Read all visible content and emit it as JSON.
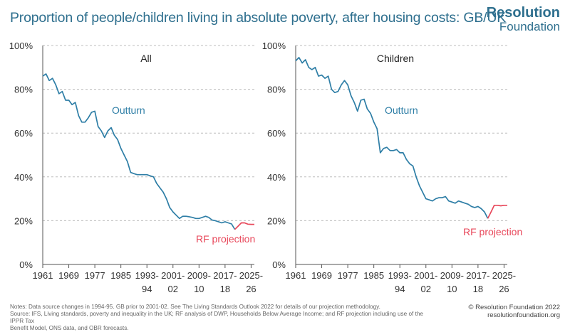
{
  "title": "Proportion of people/children living in absolute poverty, after housing costs: GB/UK",
  "logo": {
    "line1": "Resolution",
    "line2": "Foundation"
  },
  "notes": [
    "Notes: Data source changes in 1994-95. GB prior to 2001-02. See The Living Standards Outlook 2022 for details of our projection methodology.",
    "Source: IFS, Living standards, poverty and inequality in the UK; RF analysis of DWP, Households Below Average Income; and RF projection including use of the IPPR Tax",
    "Benefit Model, ONS data, and OBR forecasts."
  ],
  "copyright": {
    "line1": "© Resolution Foundation 2022",
    "line2": "resolutionfoundation.org"
  },
  "colors": {
    "outturn": "#2e7ea6",
    "projection": "#e8475a",
    "grid": "#bdbdbd",
    "title": "#2e6f8e"
  },
  "chart_data": [
    {
      "type": "line",
      "title": "All",
      "ylim": [
        0,
        100
      ],
      "yticks": [
        "0%",
        "20%",
        "40%",
        "60%",
        "80%",
        "100%"
      ],
      "xlim": [
        1961,
        2026
      ],
      "xticks": [
        {
          "x": 1961,
          "line1": "1961",
          "line2": ""
        },
        {
          "x": 1969,
          "line1": "1969",
          "line2": ""
        },
        {
          "x": 1977,
          "line1": "1977",
          "line2": ""
        },
        {
          "x": 1985,
          "line1": "1985",
          "line2": ""
        },
        {
          "x": 1993,
          "line1": "1993-",
          "line2": "94"
        },
        {
          "x": 2001,
          "line1": "2001-",
          "line2": "02"
        },
        {
          "x": 2009,
          "line1": "2009-",
          "line2": "10"
        },
        {
          "x": 2017,
          "line1": "2017-",
          "line2": "18"
        },
        {
          "x": 2025,
          "line1": "2025-",
          "line2": "26"
        }
      ],
      "grid": true,
      "annotations": [
        {
          "text": "Outturn",
          "series": "outturn"
        },
        {
          "text": "RF projection",
          "series": "projection"
        }
      ],
      "series": [
        {
          "key": "outturn",
          "x": [
            1961,
            1962,
            1963,
            1964,
            1965,
            1966,
            1967,
            1968,
            1969,
            1970,
            1971,
            1972,
            1973,
            1974,
            1975,
            1976,
            1977,
            1978,
            1979,
            1980,
            1981,
            1982,
            1983,
            1984,
            1985,
            1986,
            1987,
            1988,
            1989,
            1990,
            1991,
            1992,
            1993,
            1994,
            1995,
            1996,
            1997,
            1998,
            1999,
            2000,
            2001,
            2002,
            2003,
            2004,
            2005,
            2006,
            2007,
            2008,
            2009,
            2010,
            2011,
            2012,
            2013,
            2014,
            2015,
            2016,
            2017,
            2018,
            2019,
            2020
          ],
          "y": [
            86,
            87,
            84,
            85,
            82,
            78,
            79,
            75,
            75,
            73,
            74,
            68,
            65,
            65,
            67,
            69.5,
            70,
            63,
            61,
            58,
            61,
            62.5,
            59,
            57,
            53,
            50,
            47,
            42,
            41.5,
            41,
            41,
            41,
            41,
            40.5,
            40,
            37,
            35,
            33,
            30,
            26,
            24,
            22.5,
            21,
            22,
            22,
            21.8,
            21.5,
            21,
            21,
            21.5,
            22,
            21.5,
            20.3,
            20,
            19.5,
            19,
            19.5,
            19,
            18.5,
            16
          ]
        },
        {
          "key": "projection",
          "x": [
            2020,
            2021,
            2022,
            2023,
            2024,
            2025,
            2026
          ],
          "y": [
            16,
            17.5,
            19,
            19,
            18.4,
            18.3,
            18.3
          ]
        }
      ]
    },
    {
      "type": "line",
      "title": "Children",
      "ylim": [
        0,
        100
      ],
      "yticks": [
        "0%",
        "20%",
        "40%",
        "60%",
        "80%",
        "100%"
      ],
      "xlim": [
        1961,
        2026
      ],
      "xticks": [
        {
          "x": 1961,
          "line1": "1961",
          "line2": ""
        },
        {
          "x": 1969,
          "line1": "1969",
          "line2": ""
        },
        {
          "x": 1977,
          "line1": "1977",
          "line2": ""
        },
        {
          "x": 1985,
          "line1": "1985",
          "line2": ""
        },
        {
          "x": 1993,
          "line1": "1993-",
          "line2": "94"
        },
        {
          "x": 2001,
          "line1": "2001-",
          "line2": "02"
        },
        {
          "x": 2009,
          "line1": "2009-",
          "line2": "10"
        },
        {
          "x": 2017,
          "line1": "2017-",
          "line2": "18"
        },
        {
          "x": 2025,
          "line1": "2025-",
          "line2": "26"
        }
      ],
      "grid": true,
      "annotations": [
        {
          "text": "Outturn",
          "series": "outturn"
        },
        {
          "text": "RF projection",
          "series": "projection"
        }
      ],
      "series": [
        {
          "key": "outturn",
          "x": [
            1961,
            1962,
            1963,
            1964,
            1965,
            1966,
            1967,
            1968,
            1969,
            1970,
            1971,
            1972,
            1973,
            1974,
            1975,
            1976,
            1977,
            1978,
            1979,
            1980,
            1981,
            1982,
            1983,
            1984,
            1985,
            1986,
            1987,
            1988,
            1989,
            1990,
            1991,
            1992,
            1993,
            1994,
            1995,
            1996,
            1997,
            1998,
            1999,
            2000,
            2001,
            2002,
            2003,
            2004,
            2005,
            2006,
            2007,
            2008,
            2009,
            2010,
            2011,
            2012,
            2013,
            2014,
            2015,
            2016,
            2017,
            2018,
            2019,
            2020
          ],
          "y": [
            93,
            94.5,
            92,
            93.5,
            90,
            89,
            90,
            86,
            86.5,
            85,
            86,
            80,
            78.5,
            79,
            82,
            84,
            82,
            77,
            74,
            70,
            75,
            75.5,
            71,
            69,
            65,
            62,
            51,
            53,
            53.5,
            52,
            52,
            52.5,
            51,
            51,
            48,
            46,
            45,
            40,
            36,
            33,
            30,
            29.5,
            29,
            30,
            30.5,
            30.5,
            31,
            29,
            28.5,
            28,
            29,
            28.5,
            28,
            27.5,
            26.5,
            26,
            26.5,
            25.5,
            24,
            21
          ]
        },
        {
          "key": "projection",
          "x": [
            2020,
            2021,
            2022,
            2023,
            2024,
            2025,
            2026
          ],
          "y": [
            21,
            24,
            27,
            27,
            26.8,
            27,
            27
          ]
        }
      ]
    }
  ]
}
